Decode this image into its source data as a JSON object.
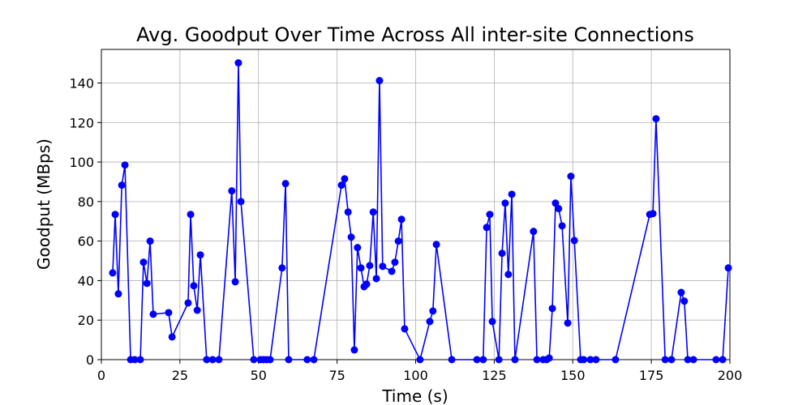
{
  "chart_data": {
    "type": "line",
    "title": "Avg. Goodput Over Time Across All inter-site Connections",
    "xlabel": "Time (s)",
    "ylabel": "Goodput (MBps)",
    "xlim": [
      0,
      200
    ],
    "ylim": [
      0,
      157
    ],
    "xticks": [
      0,
      25,
      50,
      75,
      100,
      125,
      150,
      175,
      200
    ],
    "yticks": [
      0,
      20,
      40,
      60,
      80,
      100,
      120,
      140
    ],
    "grid": true,
    "series": [
      {
        "name": "Goodput",
        "color": "#0000ff",
        "x": [
          3.6,
          4.4,
          5.4,
          6.5,
          7.5,
          9.3,
          10.6,
          12.4,
          13.4,
          14.5,
          15.5,
          16.5,
          21.4,
          22.5,
          27.6,
          28.4,
          29.4,
          30.5,
          31.5,
          33.5,
          35.4,
          37.4,
          41.5,
          42.6,
          43.6,
          44.4,
          48.5,
          50.6,
          51.6,
          52.6,
          53.7,
          57.5,
          58.6,
          59.6,
          65.5,
          67.6,
          76.4,
          77.4,
          78.5,
          79.5,
          80.5,
          81.5,
          82.6,
          83.6,
          84.4,
          85.4,
          86.5,
          87.5,
          88.5,
          89.5,
          92.4,
          93.4,
          94.5,
          95.5,
          96.5,
          101.4,
          104.5,
          105.5,
          106.6,
          111.5,
          119.5,
          121.5,
          122.6,
          123.6,
          124.4,
          126.5,
          127.5,
          128.5,
          129.5,
          130.6,
          131.6,
          137.5,
          138.6,
          140.6,
          141.7,
          142.5,
          143.5,
          144.5,
          145.5,
          146.6,
          148.4,
          149.4,
          150.5,
          152.5,
          153.5,
          155.6,
          157.4,
          163.6,
          174.5,
          175.5,
          176.5,
          179.4,
          181.4,
          184.5,
          185.5,
          186.6,
          188.4,
          195.6,
          197.7,
          199.5
        ],
        "values": [
          43.9,
          73.5,
          33.3,
          88.3,
          98.5,
          0,
          0,
          0,
          49.3,
          38.6,
          60,
          23,
          23.8,
          11.5,
          28.7,
          73.5,
          37.4,
          25,
          53,
          0,
          0,
          0,
          85.4,
          39.4,
          150.2,
          80,
          0,
          0,
          0,
          0,
          0,
          46.4,
          89.1,
          0,
          0,
          0,
          88.3,
          91.5,
          74.7,
          62,
          4.9,
          56.7,
          46.4,
          36.9,
          38.2,
          47.6,
          74.7,
          41,
          141.2,
          47.2,
          44.7,
          49.3,
          60,
          71,
          15.6,
          0,
          19.3,
          24.6,
          58.3,
          0,
          0,
          0,
          66.9,
          73.5,
          19.3,
          0,
          53.8,
          79.2,
          43.1,
          83.7,
          0,
          64.9,
          0,
          0,
          0,
          0.8,
          25.9,
          79.2,
          76.4,
          67.7,
          18.5,
          92.8,
          60.3,
          0,
          0,
          0,
          0,
          0,
          73.5,
          73.9,
          121.9,
          0,
          0,
          34,
          29.6,
          0,
          0,
          0,
          0,
          46.4
        ]
      }
    ]
  }
}
